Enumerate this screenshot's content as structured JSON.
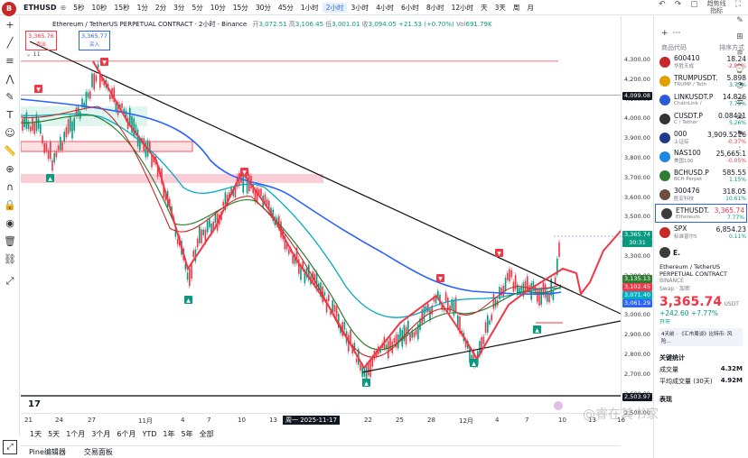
{
  "app": {
    "logo": "B",
    "symbol": "ETHUSD"
  },
  "timeframes": [
    "5秒",
    "10秒",
    "15秒",
    "1分",
    "2分",
    "3分",
    "5分",
    "10分",
    "15分",
    "30分",
    "45分",
    "1小时",
    "2小时",
    "3小时",
    "4小时",
    "6小时",
    "8小时",
    "12小时",
    "天",
    "3天",
    "周",
    "月"
  ],
  "active_timeframe": "2小时",
  "top_right": {
    "watch_label": "趋势线",
    "sub_label": "指标"
  },
  "legend": {
    "title": "Ethereum / TetherUS PERPETUAL CONTRACT · 2小时 · Binance",
    "open_label": "开",
    "open": "3,072.51",
    "high_label": "高",
    "high": "3,106.45",
    "low_label": "低",
    "low": "3,001.01",
    "close_label": "收",
    "close": "3,094.05",
    "change": "+21.53 (+0.70%)",
    "vol_label": "Vol",
    "vol": "691.79K",
    "sell_price": "3,365.76",
    "sell_label": "卖出",
    "buy_price": "3,365.77",
    "buy_label": "买入",
    "indicator_count": "11"
  },
  "price_scale": [
    "4,300.00",
    "4,200.00",
    "4,100.00",
    "4,000.00",
    "3,900.00",
    "3,800.00",
    "3,700.00",
    "3,600.00",
    "3,500.00",
    "3,400.00",
    "3,300.00",
    "3,200.00",
    "3,100.00",
    "3,000.00",
    "2,900.00",
    "2,800.00",
    "2,700.00",
    "2,600.00",
    "2,500.00"
  ],
  "price_tags": {
    "line": "4,099.08",
    "current": "3,365.74",
    "countdown": "30:31",
    "t1": "3,135.13",
    "t2": "3,102.45",
    "t3": "3,071.40",
    "t4": "3,061.29",
    "bottom": "2,503.97"
  },
  "time_axis": [
    "21",
    "24",
    "27",
    "11月",
    "4",
    "7",
    "10",
    "13",
    "周一 2025-11-17",
    "22",
    "25",
    "28",
    "12月",
    "4",
    "7",
    "10",
    "13",
    "16"
  ],
  "bottom_timeframes": [
    "1天",
    "5天",
    "1个月",
    "3个月",
    "6个月",
    "YTD",
    "1年",
    "5年",
    "全部"
  ],
  "bottom_tabs": [
    "Pine编辑器",
    "交易面板"
  ],
  "watchlist": {
    "header_left": "商品代码",
    "header_right": "排序方式",
    "items": [
      {
        "code": "600410",
        "name": "华胜天成",
        "price": "18.24",
        "change": "-2.88%",
        "dir": "dn",
        "color": "#c62828"
      },
      {
        "code": "TRUMPUSDT.",
        "name": "TRUMP / Teth",
        "price": "5.898",
        "change": "3.75%",
        "dir": "up",
        "color": "#e0a100"
      },
      {
        "code": "LINKUSDT.P",
        "name": "ChainLink /",
        "price": "14.826",
        "change": "7.79%",
        "dir": "up",
        "color": "#2a5ada"
      },
      {
        "code": "CUSDT.P",
        "name": "C / Tether",
        "price": "0.08421",
        "change": "5.26%",
        "dir": "up",
        "color": "#333"
      },
      {
        "code": "000",
        "name": "上证综",
        "price": "3,909.5216",
        "change": "-0.37%",
        "dir": "dn",
        "color": "#1e3a8a"
      },
      {
        "code": "NAS100",
        "name": "美国100",
        "price": "25,665.1",
        "change": "-0.05%",
        "dir": "dn",
        "color": "#1e88e5"
      },
      {
        "code": "BCHUSD.P",
        "name": "BCH Perpet",
        "price": "585.55",
        "change": "1.15%",
        "dir": "up",
        "color": "#2e7d32"
      },
      {
        "code": "300476",
        "name": "胜宏科技",
        "price": "318.05",
        "change": "10.61%",
        "dir": "up",
        "color": "#6d4c41"
      },
      {
        "code": "ETHUSDT.",
        "name": "Ethereum",
        "price": "3,365.74",
        "change": "7.77%",
        "dir": "up",
        "color": "#3c3c3d"
      },
      {
        "code": "SPX",
        "name": "标准普尔5",
        "price": "6,854.23",
        "change": "0.11%",
        "dir": "up",
        "color": "#c62828"
      }
    ]
  },
  "detail": {
    "short": "E.",
    "name": "Ethereum / TetherUS",
    "contract": "PERPETUAL CONTRACT",
    "exchange": "BINANCE",
    "extra": "Swap · 加密",
    "price": "3,365.74",
    "currency": "USDT",
    "change": "+242.60  +7.77%",
    "market": "开市",
    "news": "4天前 · 《汇市周谈》比特币: 风险…",
    "stats_title": "关键统计",
    "stats": [
      {
        "label": "成交量",
        "value": "4.32M"
      },
      {
        "label": "平均成交量 (30天)",
        "value": "4.92M"
      }
    ],
    "perf_title": "表现"
  },
  "watermark": "@睿在其书家",
  "colors": {
    "up": "#089981",
    "down": "#f23645",
    "accent": "#2962ff"
  }
}
